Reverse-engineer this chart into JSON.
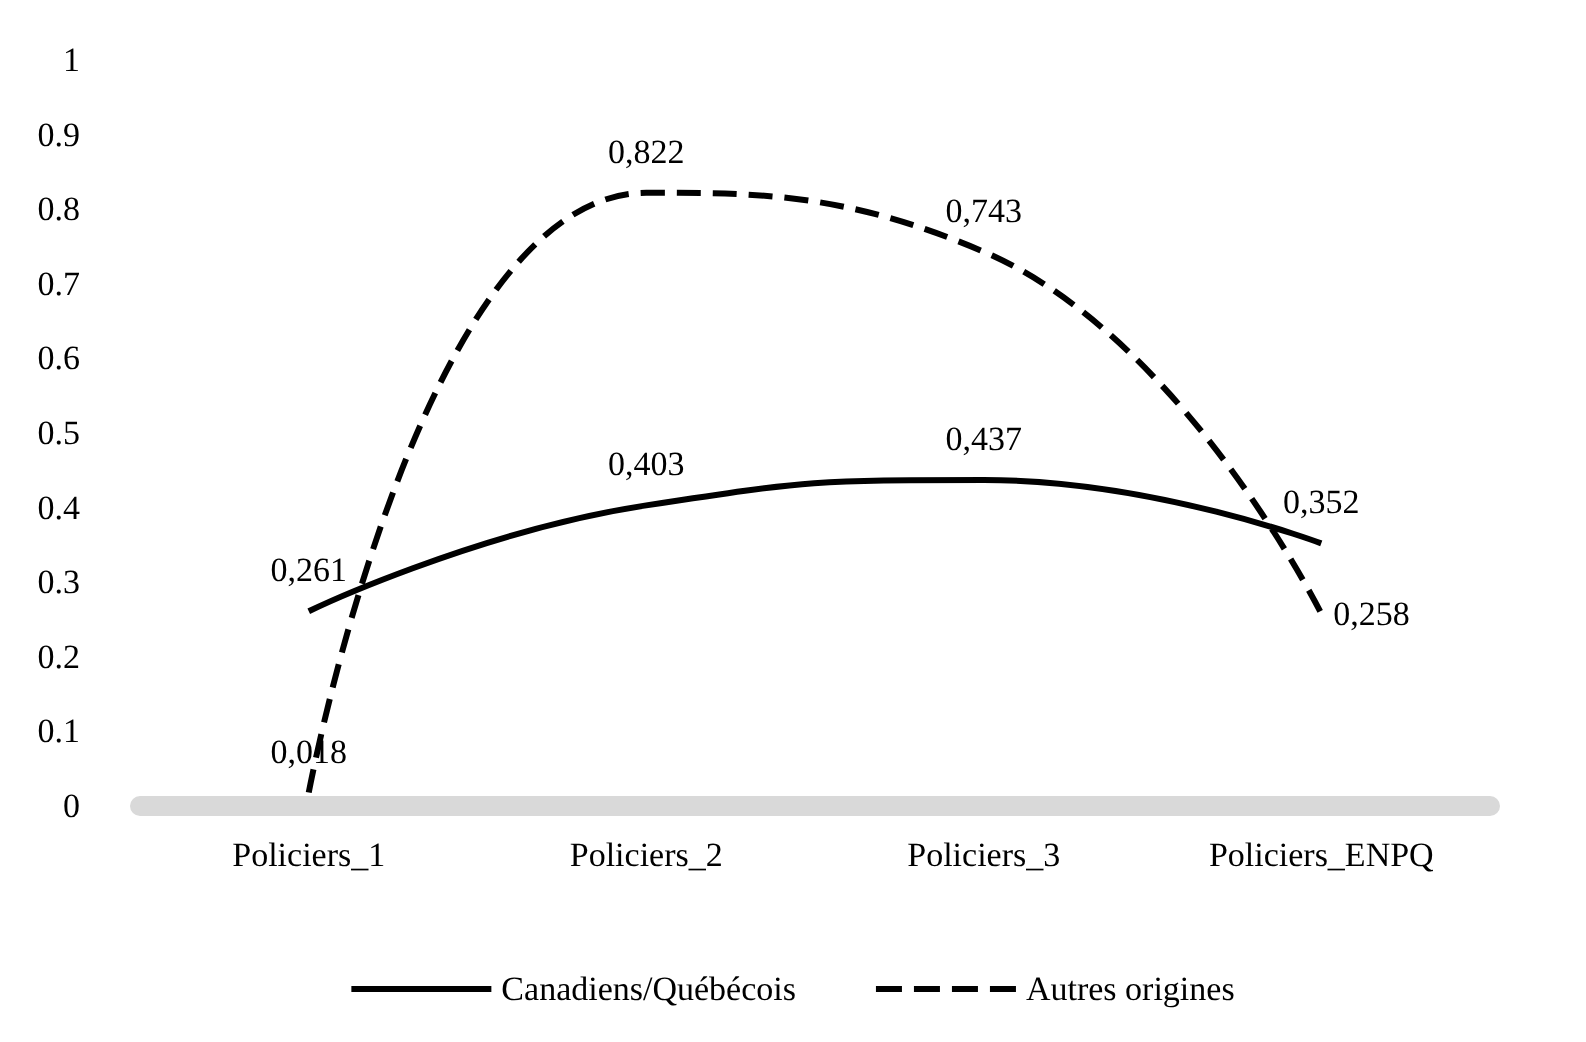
{
  "chart_data": {
    "type": "line",
    "categories": [
      "Policiers_1",
      "Policiers_2",
      "Policiers_3",
      "Policiers_ENPQ"
    ],
    "series": [
      {
        "name": "Canadiens/Québécois",
        "color": "#000000",
        "line_style": "solid",
        "values": [
          0.261,
          0.403,
          0.437,
          0.352
        ],
        "value_labels": [
          "0,261",
          "0,403",
          "0,437",
          "0,352"
        ]
      },
      {
        "name": "Autres origines",
        "color": "#000000",
        "line_style": "dashed",
        "values": [
          0.018,
          0.822,
          0.743,
          0.258
        ],
        "value_labels": [
          "0,018",
          "0,822",
          "0,743",
          "0,258"
        ]
      }
    ],
    "ylim": [
      0,
      1
    ],
    "yticks": [
      0,
      0.1,
      0.2,
      0.3,
      0.4,
      0.5,
      0.6,
      0.7,
      0.8,
      0.9,
      1
    ],
    "grid": false,
    "legend": "bottom",
    "marker": "none"
  }
}
